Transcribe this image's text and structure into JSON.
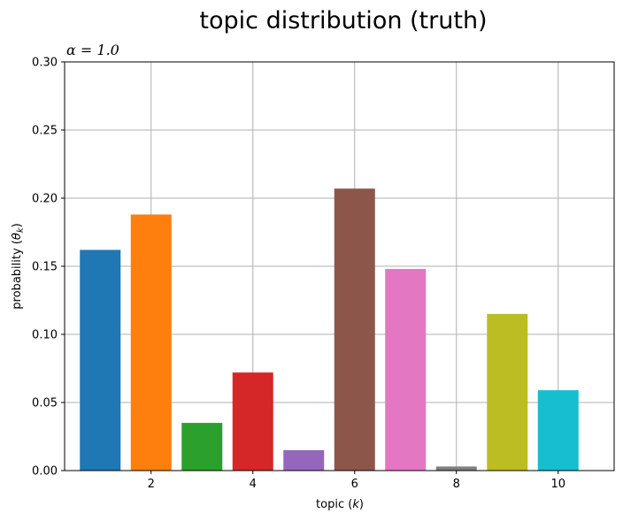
{
  "chart_data": {
    "type": "bar",
    "title": "topic distribution (truth)",
    "subtitle": "α = 1.0",
    "xlabel": "topic (k)",
    "ylabel": "probability (θk)",
    "x": [
      1,
      2,
      3,
      4,
      5,
      6,
      7,
      8,
      9,
      10
    ],
    "values": [
      0.162,
      0.188,
      0.035,
      0.072,
      0.015,
      0.207,
      0.148,
      0.003,
      0.115,
      0.059
    ],
    "colors": [
      "#1f77b4",
      "#ff7f0e",
      "#2ca02c",
      "#d62728",
      "#9467bd",
      "#8c564b",
      "#e377c2",
      "#7f7f7f",
      "#bcbd22",
      "#17becf"
    ],
    "xlim": [
      0.3,
      11.1
    ],
    "ylim": [
      0,
      0.3
    ],
    "xticks": [
      2,
      4,
      6,
      8,
      10
    ],
    "xtick_labels": [
      "2",
      "4",
      "6",
      "8",
      "10"
    ],
    "yticks": [
      0,
      0.05,
      0.1,
      0.15,
      0.2,
      0.25,
      0.3
    ],
    "ytick_labels": [
      "0.00",
      "0.05",
      "0.10",
      "0.15",
      "0.20",
      "0.25",
      "0.30"
    ],
    "grid": true,
    "legend": "none"
  }
}
